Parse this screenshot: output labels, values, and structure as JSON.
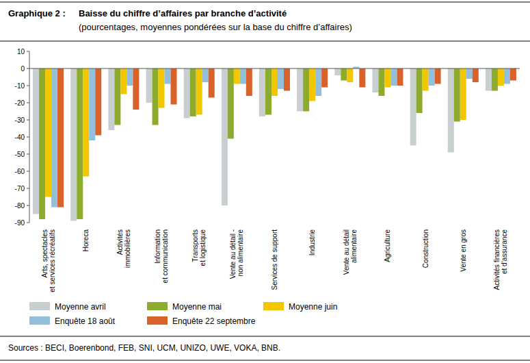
{
  "chart_data": {
    "type": "bar",
    "label": "Graphique 2 :",
    "title": "Baisse du chiffre d’affaires par branche d’activité",
    "subtitle": "(pourcentages, moyennes pondérées sur la base du chiffre d’affaires)",
    "source": "Sources : BECI, Boerenbond, FEB, SNI, UCM, UNIZO, UWE, VOKA, BNB.",
    "categories": [
      "Arts, spectacles\net services récréatifs",
      "Horeca",
      "Activités\nimmobilières",
      "Information\net communication",
      "Transports\net logistique",
      "Vente au détail -\nnon alimentaire",
      "Services de support",
      "Industrie",
      "Vente au détail\nalimentaire",
      "Agriculture",
      "Construction",
      "Vente en gros",
      "Activités financières\net d’assurance"
    ],
    "series": [
      {
        "name": "Moyenne avril",
        "color": "#c9ced1",
        "values": [
          -85,
          -89,
          -36,
          -20,
          -29,
          -80,
          -28,
          -25,
          -4,
          -14,
          -45,
          -49,
          -13
        ]
      },
      {
        "name": "Moyenne mai",
        "color": "#8dab2c",
        "values": [
          -88,
          -88,
          -33,
          -33,
          -28,
          -41,
          -27,
          -25,
          -7,
          -16,
          -26,
          -31,
          -13
        ]
      },
      {
        "name": "Moyenne juin",
        "color": "#f2c700",
        "values": [
          -75,
          -63,
          -15,
          -23,
          -27,
          -9,
          -16,
          -19,
          -8,
          -11,
          -13,
          -30,
          -10
        ]
      },
      {
        "name": "Enquête 18 août",
        "color": "#92bfdb",
        "values": [
          -81,
          -42,
          -10,
          -9,
          -8,
          -9,
          -12,
          -16,
          1,
          -10,
          -10,
          -6,
          -9
        ]
      },
      {
        "name": "Enquête 22 septembre",
        "color": "#d9622b",
        "values": [
          -81,
          -39,
          -24,
          -21,
          -17,
          -16,
          -13,
          -11,
          -11,
          -10,
          -9,
          -8,
          -7
        ]
      }
    ],
    "ylim": [
      -90,
      10
    ],
    "yticks": [
      -90,
      -80,
      -70,
      -60,
      -50,
      -40,
      -30,
      -20,
      -10,
      0,
      10
    ],
    "grid": false,
    "legend": "bottom"
  }
}
